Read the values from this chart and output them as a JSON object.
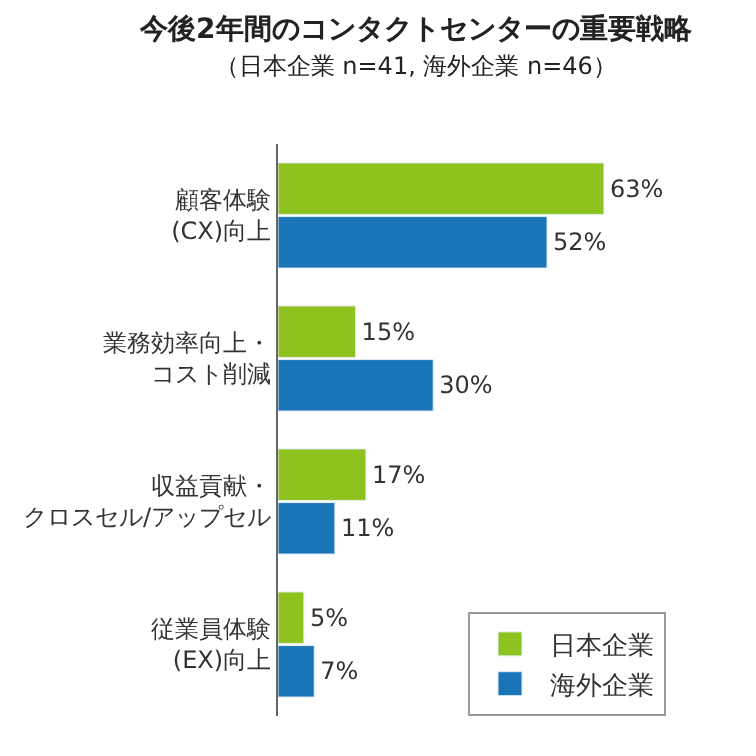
{
  "chart_data": {
    "type": "bar",
    "orientation": "horizontal",
    "title": "今後2年間のコンタクトセンターの重要戦略",
    "subtitle": "（日本企業 n=41, 海外企業 n=46）",
    "categories": [
      "顧客体験\n(CX)向上",
      "業務効率向上・コスト削減",
      "収益貢献・クロスセル/アップセル",
      "従業員体験\n(EX)向上"
    ],
    "series": [
      {
        "name": "日本企業",
        "color": "#8dc21f",
        "values": [
          63,
          15,
          17,
          5
        ],
        "value_labels": [
          "63%",
          "15%",
          "17%",
          "5%"
        ]
      },
      {
        "name": "海外企業",
        "color": "#1a75b8",
        "values": [
          52,
          30,
          11,
          7
        ],
        "value_labels": [
          "52%",
          "30%",
          "11%",
          "7%"
        ]
      }
    ],
    "xlim": [
      0,
      75
    ],
    "tick_labels": "y",
    "legend": "bottom right"
  }
}
